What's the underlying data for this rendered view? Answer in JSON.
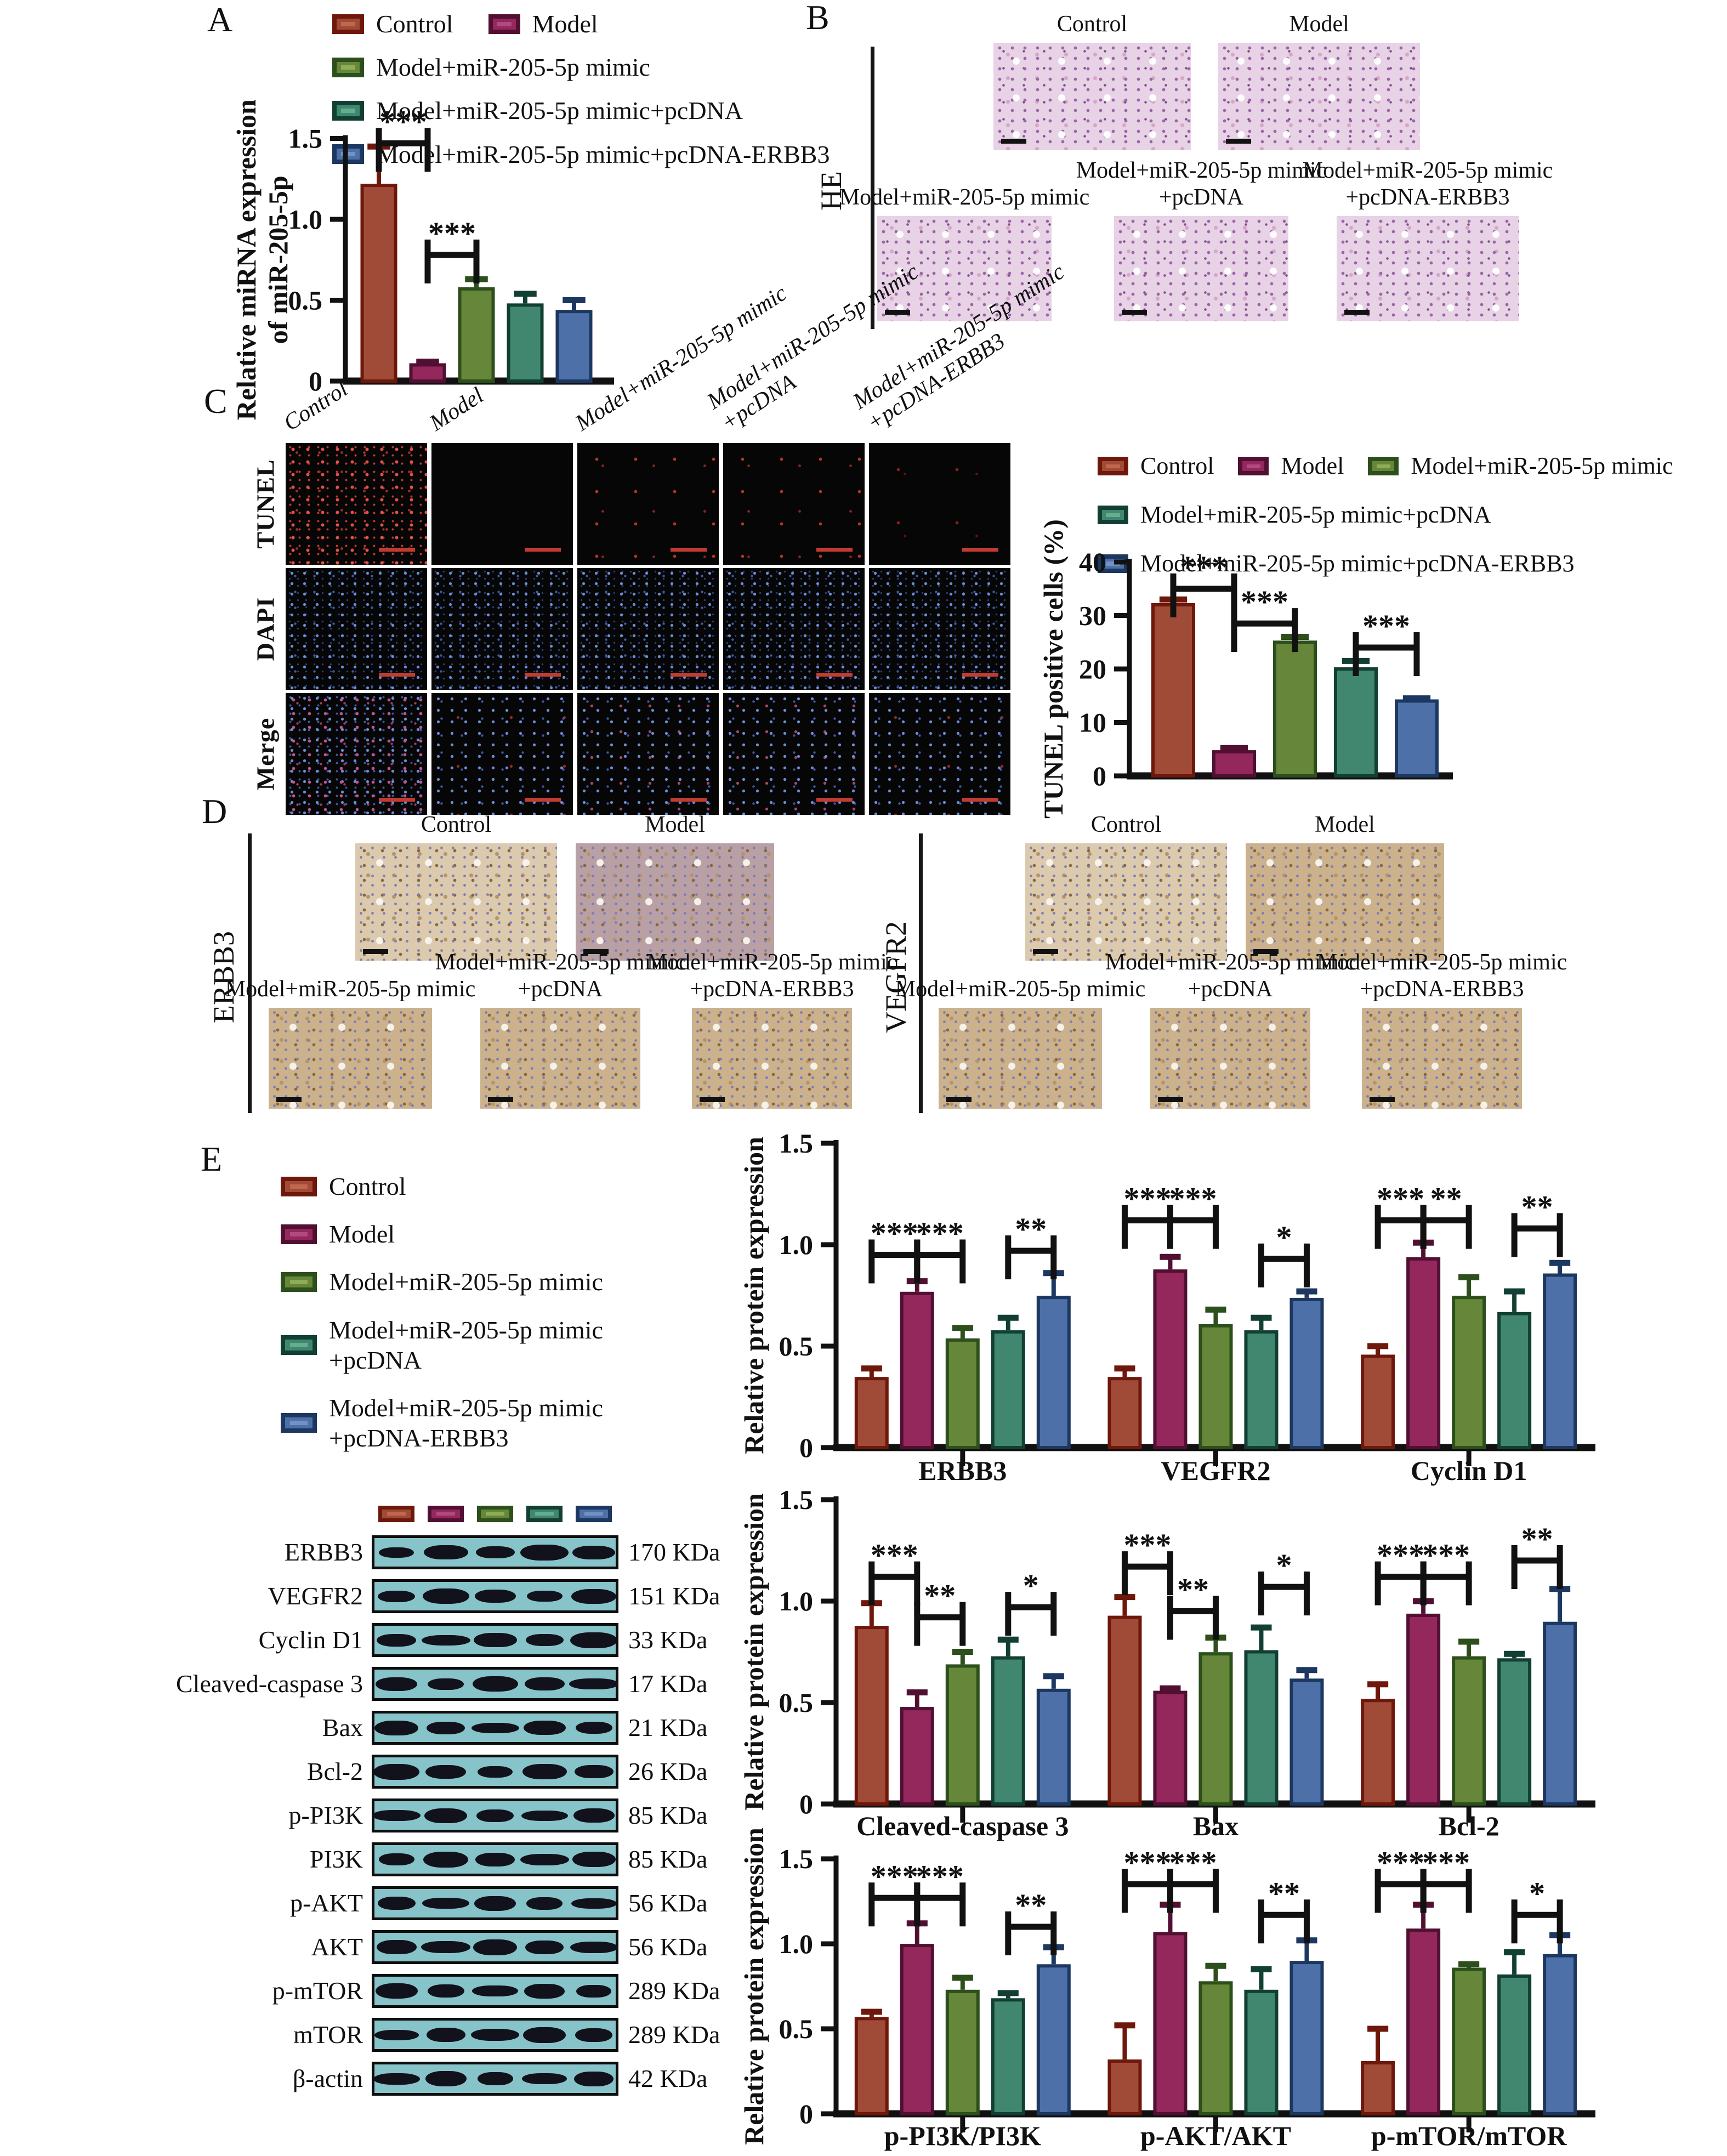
{
  "groups": [
    {
      "name": "Control",
      "fill": "#A04A38",
      "edge": "#6E180C",
      "light": "#C1674C"
    },
    {
      "name": "Model",
      "fill": "#94275C",
      "edge": "#511032",
      "light": "#B24A82"
    },
    {
      "name": "Model+miR-205-5p mimic",
      "fill": "#66873A",
      "edge": "#2C4F1B",
      "light": "#8FAC56"
    },
    {
      "name": "Model+miR-205-5p mimic+pcDNA",
      "fill": "#41876F",
      "edge": "#123F33",
      "light": "#62AE8F"
    },
    {
      "name": "Model+miR-205-5p mimic+pcDNA-ERBB3",
      "fill": "#4E70A8",
      "edge": "#1C3760",
      "light": "#7292C5"
    }
  ],
  "panelA": {
    "letter": "A",
    "legend_rows": [
      [
        0,
        1
      ],
      [
        2
      ],
      [
        3
      ],
      [
        4
      ]
    ]
  },
  "panelB": {
    "letter": "B",
    "side_label": "HE",
    "images": [
      {
        "label_lines": [
          "Control"
        ],
        "appearance": "he"
      },
      {
        "label_lines": [
          "Model"
        ],
        "appearance": "he"
      },
      {
        "label_lines": [
          "Model+miR-205-5p mimic"
        ],
        "appearance": "he"
      },
      {
        "label_lines": [
          "Model+miR-205-5p mimic",
          "+pcDNA"
        ],
        "appearance": "he"
      },
      {
        "label_lines": [
          "Model+miR-205-5p mimic",
          "+pcDNA-ERBB3"
        ],
        "appearance": "he"
      }
    ]
  },
  "panelC": {
    "letter": "C",
    "row_labels": [
      "TUNEL",
      "DAPI",
      "Merge"
    ],
    "col_labels": [
      [
        "Control"
      ],
      [
        "Model"
      ],
      [
        "Model+miR-205-5p mimic"
      ],
      [
        "Model+miR-205-5p mimic",
        "+pcDNA"
      ],
      [
        "Model+miR-205-5p mimic",
        "+pcDNA-ERBB3"
      ]
    ],
    "tiles": [
      [
        "red-dense",
        "black",
        "red-sparse",
        "red-sparse",
        "red-faint"
      ],
      [
        "blue",
        "blue",
        "blue",
        "blue",
        "blue"
      ],
      [
        "merge-mix",
        "merge-blue",
        "merge-red",
        "merge-red",
        "merge-blue"
      ]
    ],
    "legend_rows": [
      [
        0,
        1,
        2
      ],
      [
        3
      ],
      [
        4
      ]
    ]
  },
  "panelD": {
    "letter": "D",
    "blocks": [
      {
        "side_label": "ERBB3",
        "images": [
          {
            "label_lines": [
              "Control"
            ],
            "appearance": "ihc-light"
          },
          {
            "label_lines": [
              "Model"
            ],
            "appearance": "ihc-purple"
          },
          {
            "label_lines": [
              "Model+miR-205-5p mimic"
            ],
            "appearance": "ihc"
          },
          {
            "label_lines": [
              "Model+miR-205-5p mimic",
              "+pcDNA"
            ],
            "appearance": "ihc"
          },
          {
            "label_lines": [
              "Model+miR-205-5p mimic",
              "+pcDNA-ERBB3"
            ],
            "appearance": "ihc"
          }
        ]
      },
      {
        "side_label": "VEGFR2",
        "images": [
          {
            "label_lines": [
              "Control"
            ],
            "appearance": "ihc-light"
          },
          {
            "label_lines": [
              "Model"
            ],
            "appearance": "ihc"
          },
          {
            "label_lines": [
              "Model+miR-205-5p mimic"
            ],
            "appearance": "ihc"
          },
          {
            "label_lines": [
              "Model+miR-205-5p mimic",
              "+pcDNA"
            ],
            "appearance": "ihc"
          },
          {
            "label_lines": [
              "Model+miR-205-5p mimic",
              "+pcDNA-ERBB3"
            ],
            "appearance": "ihc"
          }
        ]
      }
    ]
  },
  "panelE": {
    "letter": "E",
    "legend": [
      {
        "group": 0,
        "lines": [
          "Control"
        ]
      },
      {
        "group": 1,
        "lines": [
          "Model"
        ]
      },
      {
        "group": 2,
        "lines": [
          "Model+miR-205-5p mimic"
        ]
      },
      {
        "group": 3,
        "lines": [
          "Model+miR-205-5p mimic",
          "+pcDNA"
        ]
      },
      {
        "group": 4,
        "lines": [
          "Model+miR-205-5p mimic",
          "+pcDNA-ERBB3"
        ]
      }
    ],
    "blot": {
      "lanes": 5,
      "rows": [
        {
          "protein": "ERBB3",
          "kda": "170 KDa"
        },
        {
          "protein": "VEGFR2",
          "kda": "151 KDa"
        },
        {
          "protein": "Cyclin D1",
          "kda": "33 KDa"
        },
        {
          "protein": "Cleaved-caspase 3",
          "kda": "17 KDa"
        },
        {
          "protein": "Bax",
          "kda": "21 KDa"
        },
        {
          "protein": "Bcl-2",
          "kda": "26 KDa"
        },
        {
          "protein": "p-PI3K",
          "kda": "85 KDa"
        },
        {
          "protein": "PI3K",
          "kda": "85 KDa"
        },
        {
          "protein": "p-AKT",
          "kda": "56 KDa"
        },
        {
          "protein": "AKT",
          "kda": "56 KDa"
        },
        {
          "protein": "p-mTOR",
          "kda": "289 KDa"
        },
        {
          "protein": "mTOR",
          "kda": "289 KDa"
        },
        {
          "protein": "β-actin",
          "kda": "42 KDa"
        }
      ]
    }
  },
  "chart_data": [
    {
      "id": "A",
      "type": "bar",
      "ylabel_lines": [
        "Relative miRNA expression",
        "of miR-205-5p"
      ],
      "ylim": [
        0,
        1.5
      ],
      "yticks": [
        {
          "v": 0,
          "label": "0"
        },
        {
          "v": 0.5,
          "label": "0.5"
        },
        {
          "v": 1.0,
          "label": "1.0"
        },
        {
          "v": 1.5,
          "label": "1.5"
        }
      ],
      "values": [
        1.21,
        0.1,
        0.57,
        0.47,
        0.43
      ],
      "errors": [
        0.24,
        0.02,
        0.06,
        0.07,
        0.07
      ],
      "sig": [
        {
          "bars": [
            0,
            1
          ],
          "label": "***",
          "y": 1.47
        },
        {
          "bars": [
            1,
            2
          ],
          "label": "***",
          "y": 0.78
        }
      ]
    },
    {
      "id": "C",
      "type": "bar",
      "ylabel_lines": [
        "TUNEL positive cells (%)"
      ],
      "ylim": [
        0,
        40
      ],
      "yticks": [
        {
          "v": 0,
          "label": "0"
        },
        {
          "v": 10,
          "label": "10"
        },
        {
          "v": 20,
          "label": "20"
        },
        {
          "v": 30,
          "label": "30"
        },
        {
          "v": 40,
          "label": "40"
        }
      ],
      "values": [
        32,
        4.5,
        25,
        20,
        14
      ],
      "errors": [
        1,
        0.7,
        1,
        1.5,
        0.5
      ],
      "sig": [
        {
          "bars": [
            0,
            1
          ],
          "label": "***",
          "y": 35
        },
        {
          "bars": [
            1,
            2
          ],
          "label": "***",
          "y": 28.5
        },
        {
          "bars": [
            3,
            4
          ],
          "label": "***",
          "y": 24
        }
      ]
    },
    {
      "id": "E1",
      "type": "grouped-bar",
      "ylabel_lines": [
        "Relative protein expression"
      ],
      "ylim": [
        0,
        1.5
      ],
      "yticks": [
        {
          "v": 0,
          "label": "0"
        },
        {
          "v": 0.5,
          "label": "0.5"
        },
        {
          "v": 1.0,
          "label": "1.0"
        },
        {
          "v": 1.5,
          "label": "1.5"
        }
      ],
      "categories": [
        "ERBB3",
        "VEGFR2",
        "Cyclin D1"
      ],
      "series": [
        {
          "name": "Control",
          "values": [
            0.34,
            0.34,
            0.45
          ]
        },
        {
          "name": "Model",
          "values": [
            0.76,
            0.87,
            0.93
          ]
        },
        {
          "name": "Model+miR-205-5p mimic",
          "values": [
            0.53,
            0.6,
            0.74
          ]
        },
        {
          "name": "Model+miR-205-5p mimic+pcDNA",
          "values": [
            0.57,
            0.57,
            0.66
          ]
        },
        {
          "name": "Model+miR-205-5p mimic+pcDNA-ERBB3",
          "values": [
            0.74,
            0.73,
            0.85
          ]
        }
      ],
      "errors": [
        [
          0.05,
          0.05,
          0.05
        ],
        [
          0.06,
          0.07,
          0.08
        ],
        [
          0.06,
          0.08,
          0.1
        ],
        [
          0.07,
          0.07,
          0.11
        ],
        [
          0.12,
          0.04,
          0.06
        ]
      ],
      "sig": [
        {
          "cat": 0,
          "bars": [
            0,
            1
          ],
          "label": "***",
          "y": 0.95
        },
        {
          "cat": 0,
          "bars": [
            1,
            2
          ],
          "label": "***",
          "y": 0.95
        },
        {
          "cat": 0,
          "bars": [
            3,
            4
          ],
          "label": "**",
          "y": 0.97
        },
        {
          "cat": 1,
          "bars": [
            0,
            1
          ],
          "label": "***",
          "y": 1.12
        },
        {
          "cat": 1,
          "bars": [
            1,
            2
          ],
          "label": "***",
          "y": 1.12
        },
        {
          "cat": 1,
          "bars": [
            3,
            4
          ],
          "label": "*",
          "y": 0.93
        },
        {
          "cat": 2,
          "bars": [
            0,
            1
          ],
          "label": "***",
          "y": 1.12
        },
        {
          "cat": 2,
          "bars": [
            1,
            2
          ],
          "label": "**",
          "y": 1.12
        },
        {
          "cat": 2,
          "bars": [
            3,
            4
          ],
          "label": "**",
          "y": 1.08
        }
      ]
    },
    {
      "id": "E2",
      "type": "grouped-bar",
      "ylabel_lines": [
        "Relative protein expression"
      ],
      "ylim": [
        0,
        1.5
      ],
      "yticks": [
        {
          "v": 0,
          "label": "0"
        },
        {
          "v": 0.5,
          "label": "0.5"
        },
        {
          "v": 1.0,
          "label": "1.0"
        },
        {
          "v": 1.5,
          "label": "1.5"
        }
      ],
      "categories": [
        "Cleaved-caspase 3",
        "Bax",
        "Bcl-2"
      ],
      "series": [
        {
          "name": "Control",
          "values": [
            0.87,
            0.92,
            0.51
          ]
        },
        {
          "name": "Model",
          "values": [
            0.47,
            0.55,
            0.93
          ]
        },
        {
          "name": "Model+miR-205-5p mimic",
          "values": [
            0.68,
            0.74,
            0.72
          ]
        },
        {
          "name": "Model+miR-205-5p mimic+pcDNA",
          "values": [
            0.72,
            0.75,
            0.71
          ]
        },
        {
          "name": "Model+miR-205-5p mimic+pcDNA-ERBB3",
          "values": [
            0.56,
            0.61,
            0.89
          ]
        }
      ],
      "errors": [
        [
          0.12,
          0.1,
          0.08
        ],
        [
          0.08,
          0.02,
          0.07
        ],
        [
          0.07,
          0.08,
          0.08
        ],
        [
          0.09,
          0.12,
          0.03
        ],
        [
          0.07,
          0.05,
          0.17
        ]
      ],
      "sig": [
        {
          "cat": 0,
          "bars": [
            0,
            1
          ],
          "label": "***",
          "y": 1.12
        },
        {
          "cat": 0,
          "bars": [
            1,
            2
          ],
          "label": "**",
          "y": 0.92
        },
        {
          "cat": 0,
          "bars": [
            3,
            4
          ],
          "label": "*",
          "y": 0.97
        },
        {
          "cat": 1,
          "bars": [
            0,
            1
          ],
          "label": "***",
          "y": 1.17
        },
        {
          "cat": 1,
          "bars": [
            1,
            2
          ],
          "label": "**",
          "y": 0.95
        },
        {
          "cat": 1,
          "bars": [
            3,
            4
          ],
          "label": "*",
          "y": 1.07
        },
        {
          "cat": 2,
          "bars": [
            0,
            1
          ],
          "label": "***",
          "y": 1.12
        },
        {
          "cat": 2,
          "bars": [
            1,
            2
          ],
          "label": "***",
          "y": 1.12
        },
        {
          "cat": 2,
          "bars": [
            3,
            4
          ],
          "label": "**",
          "y": 1.2
        }
      ]
    },
    {
      "id": "E3",
      "type": "grouped-bar",
      "ylabel_lines": [
        "Relative protein expression"
      ],
      "ylim": [
        0,
        1.5
      ],
      "yticks": [
        {
          "v": 0,
          "label": "0"
        },
        {
          "v": 0.5,
          "label": "0.5"
        },
        {
          "v": 1.0,
          "label": "1.0"
        },
        {
          "v": 1.5,
          "label": "1.5"
        }
      ],
      "categories": [
        "p-PI3K/PI3K",
        "p-AKT/AKT",
        "p-mTOR/mTOR"
      ],
      "series": [
        {
          "name": "Control",
          "values": [
            0.56,
            0.31,
            0.3
          ]
        },
        {
          "name": "Model",
          "values": [
            0.99,
            1.06,
            1.08
          ]
        },
        {
          "name": "Model+miR-205-5p mimic",
          "values": [
            0.72,
            0.77,
            0.85
          ]
        },
        {
          "name": "Model+miR-205-5p mimic+pcDNA",
          "values": [
            0.67,
            0.72,
            0.81
          ]
        },
        {
          "name": "Model+miR-205-5p mimic+pcDNA-ERBB3",
          "values": [
            0.87,
            0.89,
            0.93
          ]
        }
      ],
      "errors": [
        [
          0.04,
          0.21,
          0.2
        ],
        [
          0.13,
          0.17,
          0.15
        ],
        [
          0.08,
          0.1,
          0.03
        ],
        [
          0.04,
          0.13,
          0.14
        ],
        [
          0.11,
          0.13,
          0.12
        ]
      ],
      "sig": [
        {
          "cat": 0,
          "bars": [
            0,
            1
          ],
          "label": "***",
          "y": 1.27
        },
        {
          "cat": 0,
          "bars": [
            1,
            2
          ],
          "label": "***",
          "y": 1.27
        },
        {
          "cat": 0,
          "bars": [
            3,
            4
          ],
          "label": "**",
          "y": 1.1
        },
        {
          "cat": 1,
          "bars": [
            0,
            1
          ],
          "label": "***",
          "y": 1.35
        },
        {
          "cat": 1,
          "bars": [
            1,
            2
          ],
          "label": "***",
          "y": 1.35
        },
        {
          "cat": 1,
          "bars": [
            3,
            4
          ],
          "label": "**",
          "y": 1.17
        },
        {
          "cat": 2,
          "bars": [
            0,
            1
          ],
          "label": "***",
          "y": 1.35
        },
        {
          "cat": 2,
          "bars": [
            1,
            2
          ],
          "label": "***",
          "y": 1.35
        },
        {
          "cat": 2,
          "bars": [
            3,
            4
          ],
          "label": "*",
          "y": 1.17
        }
      ]
    }
  ]
}
